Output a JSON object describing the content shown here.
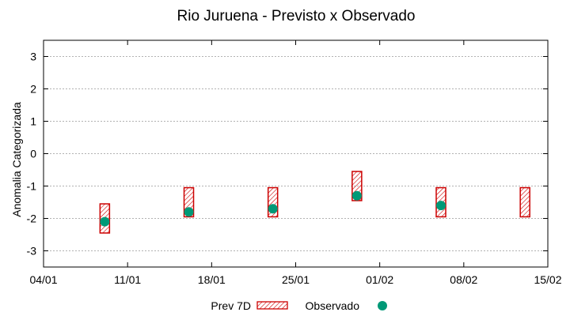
{
  "chart_data": {
    "type": "scatter",
    "title": "Rio Juruena - Previsto x Observado",
    "xlabel": "",
    "ylabel": "Anomalia Categorizada",
    "x_ticks": [
      "04/01",
      "11/01",
      "18/01",
      "25/01",
      "01/02",
      "08/02",
      "15/02"
    ],
    "x_range_days": [
      0,
      42
    ],
    "ylim": [
      -3.5,
      3.5
    ],
    "y_ticks": [
      -3,
      -2,
      -1,
      0,
      1,
      2,
      3
    ],
    "y_tick_labels": [
      "-3",
      "-2",
      "-1",
      "0",
      "1",
      "2",
      "3"
    ],
    "grid": true,
    "legend": [
      {
        "label": "Prev 7D"
      },
      {
        "label": "Observado"
      }
    ],
    "series": [
      {
        "name": "Prev 7D",
        "kind": "range",
        "points": [
          {
            "day": 5.1,
            "low": -2.45,
            "high": -1.55
          },
          {
            "day": 12.1,
            "low": -1.95,
            "high": -1.05
          },
          {
            "day": 19.1,
            "low": -1.95,
            "high": -1.05
          },
          {
            "day": 26.1,
            "low": -1.45,
            "high": -0.55
          },
          {
            "day": 33.1,
            "low": -1.95,
            "high": -1.05
          },
          {
            "day": 40.1,
            "low": -1.95,
            "high": -1.05
          }
        ]
      },
      {
        "name": "Observado",
        "kind": "point",
        "points": [
          {
            "day": 5.1,
            "value": -2.1
          },
          {
            "day": 12.1,
            "value": -1.8
          },
          {
            "day": 19.1,
            "value": -1.7
          },
          {
            "day": 26.1,
            "value": -1.3
          },
          {
            "day": 33.1,
            "value": -1.6
          }
        ]
      }
    ],
    "colors": {
      "forecast_stroke": "#cc0000",
      "observed_fill": "#009977",
      "grid": "#999999"
    }
  }
}
